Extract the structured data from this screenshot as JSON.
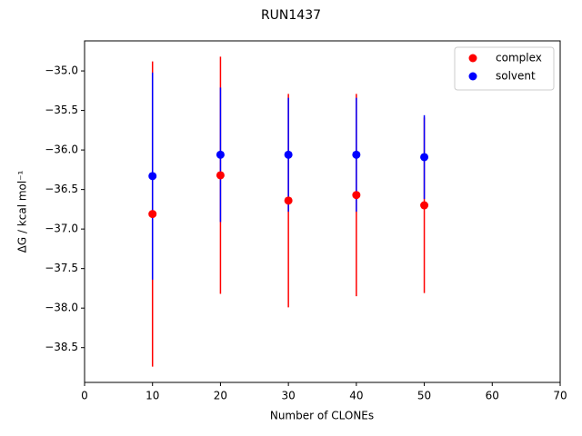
{
  "chart_data": {
    "type": "errorbar-scatter",
    "title": "RUN1437",
    "xlabel": "Number of CLONEs",
    "ylabel": "ΔG / kcal mol⁻¹",
    "x": [
      10,
      20,
      30,
      40,
      50
    ],
    "series": [
      {
        "name": "complex",
        "color": "#ff0000",
        "values": [
          -36.81,
          -36.32,
          -36.64,
          -36.57,
          -36.7
        ],
        "errors": [
          1.93,
          1.5,
          1.35,
          1.28,
          1.11
        ]
      },
      {
        "name": "solvent",
        "color": "#0000ff",
        "values": [
          -36.33,
          -36.06,
          -36.06,
          -36.06,
          -36.09
        ],
        "errors": [
          1.31,
          0.85,
          0.72,
          0.72,
          0.53
        ]
      }
    ],
    "xlim": [
      0,
      70
    ],
    "xticks": [
      0,
      10,
      20,
      30,
      40,
      50,
      60,
      70
    ],
    "ylim": [
      -38.94,
      -34.62
    ],
    "yticks": [
      {
        "value": -38.5,
        "label": "−38.5"
      },
      {
        "value": -38.0,
        "label": "−38.0"
      },
      {
        "value": -37.5,
        "label": "−37.5"
      },
      {
        "value": -37.0,
        "label": "−37.0"
      },
      {
        "value": -36.5,
        "label": "−36.5"
      },
      {
        "value": -36.0,
        "label": "−36.0"
      },
      {
        "value": -35.5,
        "label": "−35.5"
      },
      {
        "value": -35.0,
        "label": "−35.0"
      }
    ],
    "legend": "upper right",
    "grid": false
  }
}
